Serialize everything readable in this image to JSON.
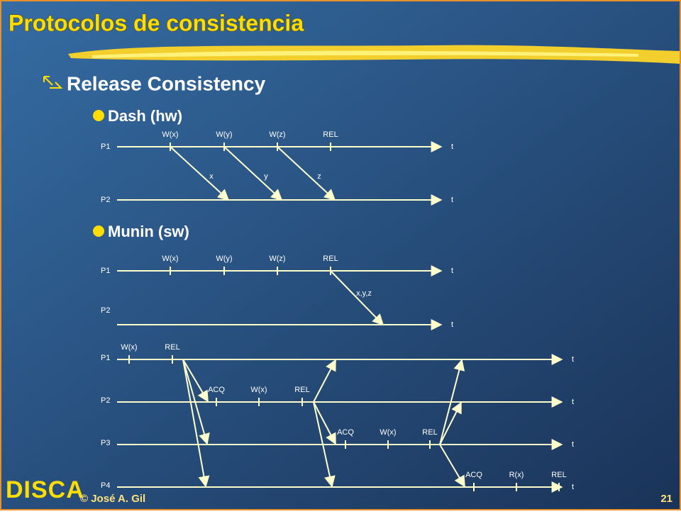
{
  "title": "Protocolos de consistencia",
  "bullet": "Release Consistency",
  "sections": [
    {
      "heading": "Dash (hw)",
      "diagram": {
        "processes": [
          {
            "label": "P1",
            "axis_label": "t",
            "events": [
              "W(x)",
              "W(y)",
              "W(z)",
              "REL"
            ]
          },
          {
            "label": "P2",
            "axis_label": "t",
            "events": []
          }
        ],
        "messages": [
          "x",
          "y",
          "z"
        ]
      }
    },
    {
      "heading": "Munin (sw)",
      "diagram": {
        "processes": [
          {
            "label": "P1",
            "axis_label": "t",
            "events": [
              "W(x)",
              "W(y)",
              "W(z)",
              "REL"
            ]
          },
          {
            "label": "P2",
            "axis_label": "t",
            "events": []
          }
        ],
        "messages": [
          "x,y,z"
        ]
      }
    }
  ],
  "diagram": {
    "processes": [
      {
        "label": "P1",
        "axis_label": "t",
        "events": [
          "W(x)",
          "REL"
        ]
      },
      {
        "label": "P2",
        "axis_label": "t",
        "events": [
          "ACQ",
          "W(x)",
          "REL"
        ]
      },
      {
        "label": "P3",
        "axis_label": "t",
        "events": [
          "ACQ",
          "W(x)",
          "REL"
        ]
      },
      {
        "label": "P4",
        "axis_label": "t",
        "events": [
          "ACQ",
          "R(x)",
          "REL"
        ]
      }
    ]
  },
  "footer": {
    "logo": "DISCA",
    "author": "© José A. Gil",
    "page": "21"
  }
}
